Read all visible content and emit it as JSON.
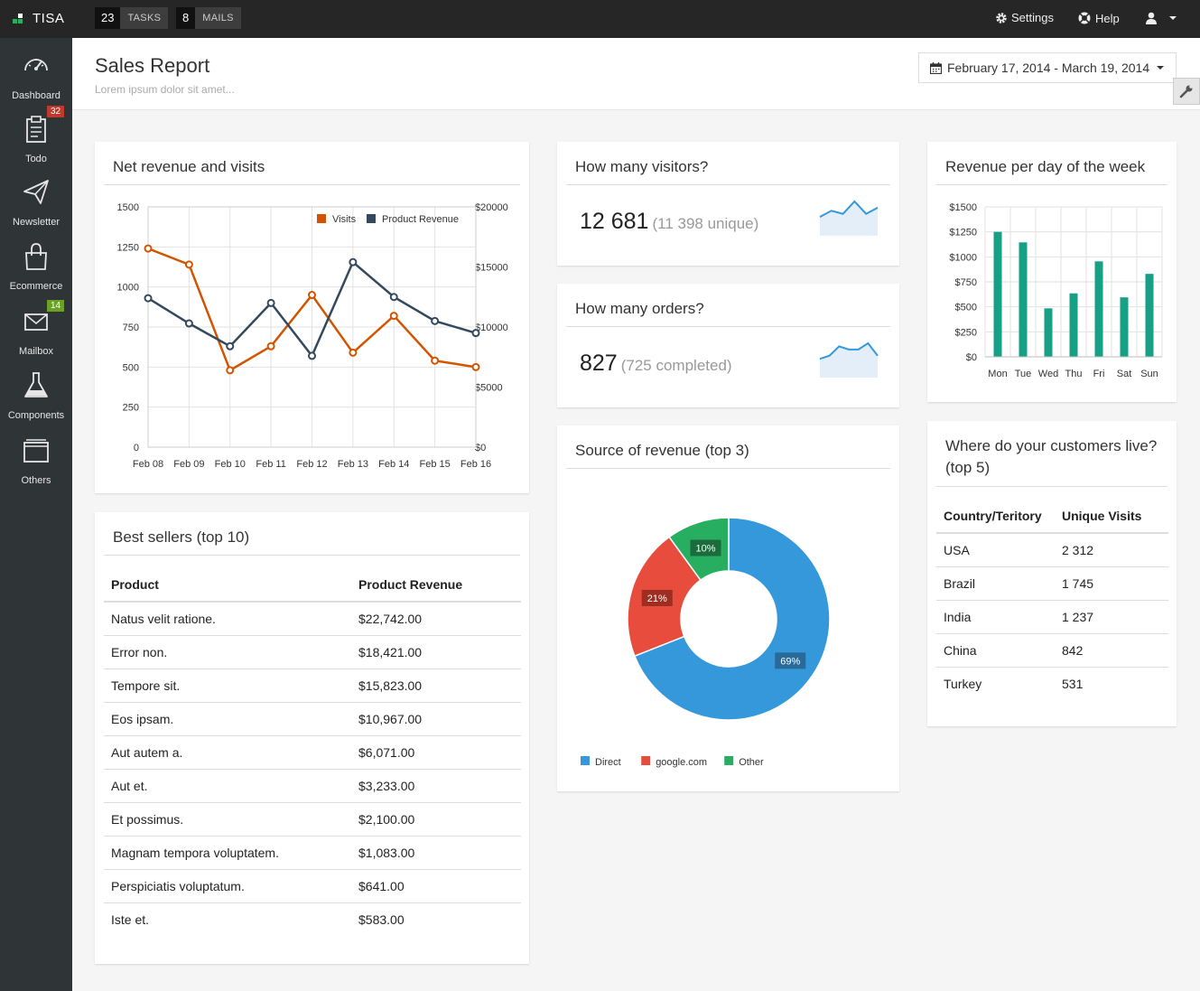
{
  "topbar": {
    "brand": "TISA",
    "tasks": {
      "count": "23",
      "label": "TASKS"
    },
    "mails": {
      "count": "8",
      "label": "MAILS"
    },
    "settings_label": "Settings",
    "help_label": "Help"
  },
  "sidebar": {
    "items": [
      {
        "label": "Dashboard",
        "icon": "dashboard-icon"
      },
      {
        "label": "Todo",
        "icon": "clipboard-icon",
        "badge": "32"
      },
      {
        "label": "Newsletter",
        "icon": "paper-plane-icon"
      },
      {
        "label": "Ecommerce",
        "icon": "shopping-bag-icon"
      },
      {
        "label": "Mailbox",
        "icon": "envelope-icon",
        "badge": "14"
      },
      {
        "label": "Components",
        "icon": "flask-icon"
      },
      {
        "label": "Others",
        "icon": "folder-icon"
      }
    ]
  },
  "header": {
    "title": "Sales Report",
    "subtitle": "Lorem ipsum dolor sit amet...",
    "date_range": "February 17, 2014 - March 19, 2014"
  },
  "colors": {
    "orange": "#d35400",
    "navy": "#34495e",
    "teal": "#16a085",
    "blue": "#3498db",
    "red": "#e74c3c",
    "green": "#27ae60"
  },
  "panels": {
    "revenue_visits": {
      "title": "Net revenue and visits"
    },
    "visitors": {
      "title": "How many visitors?",
      "value": "12 681",
      "sub": "(11 398 unique)"
    },
    "orders": {
      "title": "How many orders?",
      "value": "827",
      "sub": "(725 completed)"
    },
    "source": {
      "title": "Source of revenue (top 3)"
    },
    "weekday": {
      "title": "Revenue per day of the week"
    },
    "bestsellers": {
      "title": "Best sellers (top 10)",
      "columns": [
        "Product",
        "Product Revenue"
      ],
      "rows": [
        [
          "Natus velit ratione.",
          "$22,742.00"
        ],
        [
          "Error non.",
          "$18,421.00"
        ],
        [
          "Tempore sit.",
          "$15,823.00"
        ],
        [
          "Eos ipsam.",
          "$10,967.00"
        ],
        [
          "Aut autem a.",
          "$6,071.00"
        ],
        [
          "Aut et.",
          "$3,233.00"
        ],
        [
          "Et possimus.",
          "$2,100.00"
        ],
        [
          "Magnam tempora voluptatem.",
          "$1,083.00"
        ],
        [
          "Perspiciatis voluptatum.",
          "$641.00"
        ],
        [
          "Iste et.",
          "$583.00"
        ]
      ]
    },
    "customers": {
      "title_line1": "Where do your customers live?",
      "title_line2": "(top 5)",
      "columns": [
        "Country/Teritory",
        "Unique Visits"
      ],
      "rows": [
        [
          "USA",
          "2 312"
        ],
        [
          "Brazil",
          "1 745"
        ],
        [
          "India",
          "1 237"
        ],
        [
          "China",
          "842"
        ],
        [
          "Turkey",
          "531"
        ]
      ]
    }
  },
  "chart_data": [
    {
      "type": "line",
      "x": [
        "Feb 08",
        "Feb 09",
        "Feb 10",
        "Feb 11",
        "Feb 12",
        "Feb 13",
        "Feb 14",
        "Feb 15",
        "Feb 16"
      ],
      "left_ticks": [
        "1500",
        "1250",
        "1000",
        "750",
        "500",
        "250",
        "0"
      ],
      "right_ticks": [
        "$20000",
        "$15000",
        "$10000",
        "$5000",
        "$0"
      ],
      "ylim_left": [
        0,
        1500
      ],
      "ylim_right": [
        0,
        20000
      ],
      "grid": true,
      "legend_position": "top-right",
      "series": [
        {
          "name": "Visits",
          "axis": "left",
          "values": [
            1240,
            1140,
            480,
            630,
            950,
            590,
            820,
            540,
            500
          ]
        },
        {
          "name": "Product Revenue",
          "axis": "right",
          "values": [
            12400,
            10300,
            8400,
            12000,
            7600,
            15400,
            12500,
            10500,
            9500
          ]
        }
      ]
    },
    {
      "type": "area",
      "series": [
        {
          "values": [
            2,
            4,
            3,
            7,
            3,
            5
          ]
        }
      ]
    },
    {
      "type": "area",
      "series": [
        {
          "values": [
            2,
            3,
            6,
            5,
            5,
            7,
            3
          ]
        }
      ]
    },
    {
      "type": "pie",
      "categories": [
        "Direct",
        "google.com",
        "Other"
      ],
      "values": [
        69,
        21,
        10
      ],
      "labels": [
        "69%",
        "21%",
        "10%"
      ],
      "legend_position": "bottom"
    },
    {
      "type": "bar",
      "categories": [
        "Mon",
        "Tue",
        "Wed",
        "Thu",
        "Fri",
        "Sat",
        "Sun"
      ],
      "values": [
        1250,
        1145,
        485,
        635,
        955,
        595,
        830
      ],
      "yticks": [
        "$1500",
        "$1250",
        "$1000",
        "$750",
        "$500",
        "$250",
        "$0"
      ],
      "ylim": [
        0,
        1500
      ],
      "grid": true
    }
  ]
}
